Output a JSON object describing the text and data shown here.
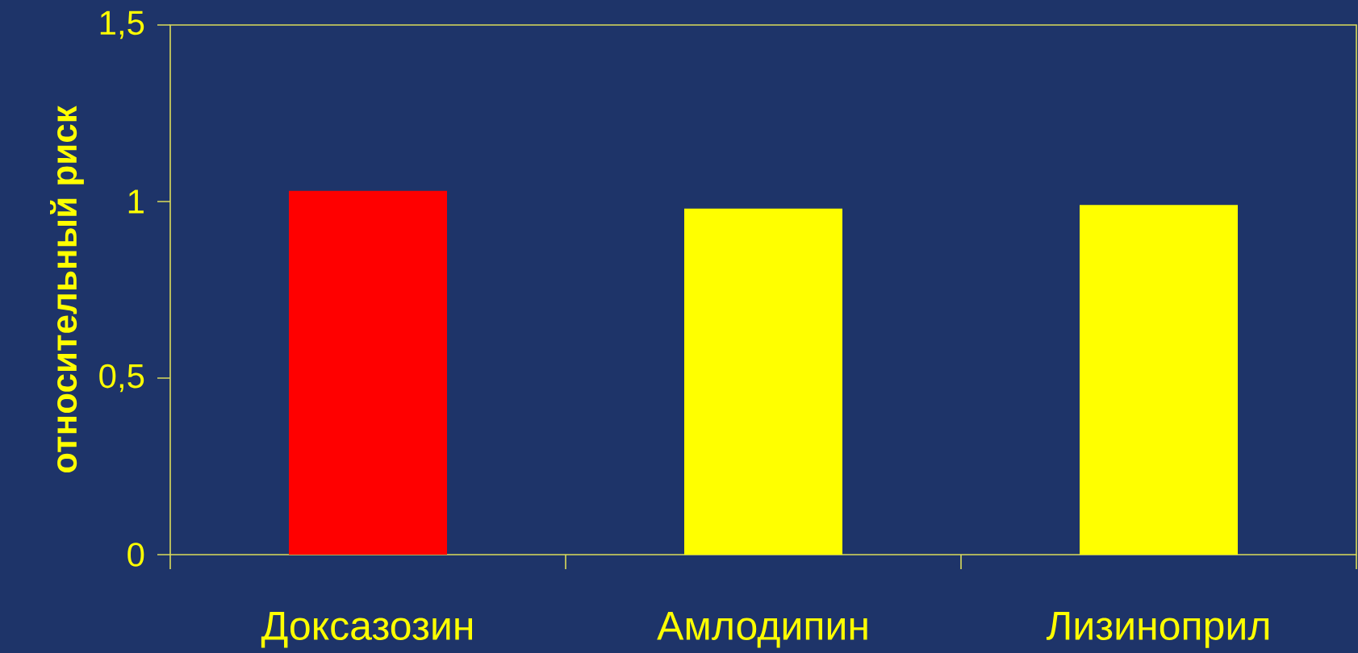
{
  "chart_data": {
    "type": "bar",
    "ylabel": "относительный риск",
    "categories": [
      "Доксазозин",
      "Амлодипин",
      "Лизиноприл"
    ],
    "values": [
      1.03,
      0.98,
      0.99
    ],
    "colors": [
      "#ff0000",
      "#ffff00",
      "#ffff00"
    ],
    "ylim": [
      0,
      1.5
    ],
    "yticks": [
      {
        "value": 0,
        "label": "0"
      },
      {
        "value": 0.5,
        "label": "0,5"
      },
      {
        "value": 1,
        "label": "1"
      },
      {
        "value": 1.5,
        "label": "1,5"
      }
    ],
    "grid": false
  }
}
